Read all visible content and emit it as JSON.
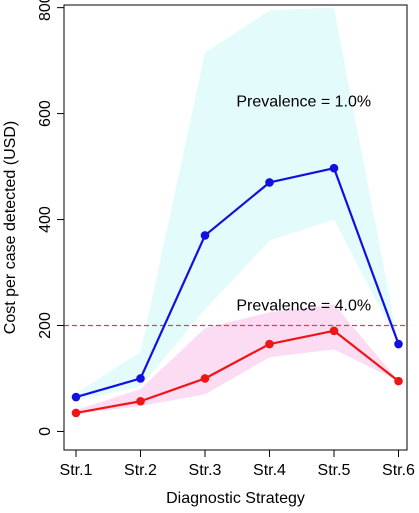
{
  "chart_data": {
    "type": "line",
    "xlabel": "Diagnostic Strategy",
    "ylabel": "Cost per case detected (USD)",
    "categories": [
      "Str.1",
      "Str.2",
      "Str.3",
      "Str.4",
      "Str.5",
      "Str.6"
    ],
    "ylim": [
      -35,
      805
    ],
    "yticks": [
      0,
      200,
      400,
      600,
      800
    ],
    "grid": false,
    "reference_line": {
      "y": 200,
      "color": "#e8413a",
      "style": "dashed"
    },
    "series": [
      {
        "name": "Prevalence = 1.0%",
        "color": "#1010e0",
        "band_color": "#e4fbfb",
        "values": [
          65,
          100,
          370,
          470,
          497,
          165
        ],
        "lower": [
          58,
          85,
          230,
          360,
          400,
          165
        ],
        "upper": [
          72,
          150,
          715,
          795,
          800,
          165
        ],
        "label_anchor": {
          "x": 3.5,
          "y": 625
        }
      },
      {
        "name": "Prevalence = 4.0%",
        "color": "#f01414",
        "band_color": "#fbdcf3",
        "values": [
          35,
          57,
          100,
          165,
          190,
          95
        ],
        "lower": [
          33,
          48,
          70,
          140,
          155,
          95
        ],
        "upper": [
          40,
          80,
          195,
          225,
          240,
          95
        ],
        "label_anchor": {
          "x": 3.5,
          "y": 240
        }
      }
    ]
  }
}
